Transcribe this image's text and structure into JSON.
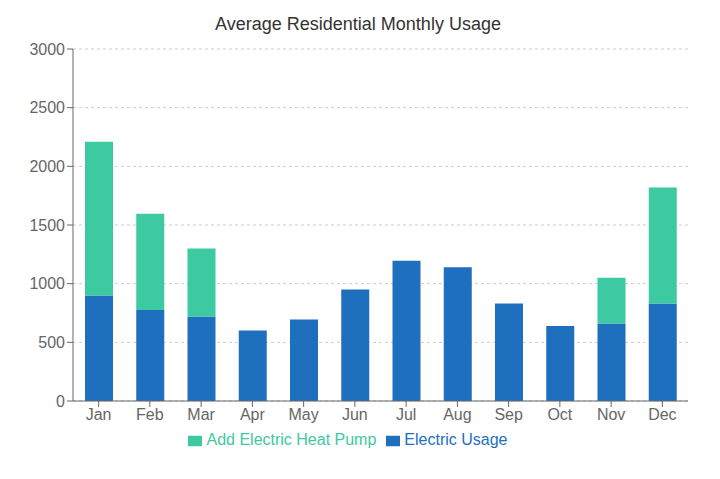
{
  "chart_data": {
    "type": "bar",
    "title": "Average Residential Monthly Usage",
    "categories": [
      "Jan",
      "Feb",
      "Mar",
      "Apr",
      "May",
      "Jun",
      "Jul",
      "Aug",
      "Sep",
      "Oct",
      "Nov",
      "Dec"
    ],
    "series": [
      {
        "name": "Electric Usage",
        "color": "#1E6FBE",
        "values": [
          900,
          775,
          720,
          600,
          695,
          950,
          1195,
          1140,
          830,
          640,
          660,
          830
        ]
      },
      {
        "name": "Add Electric Heat Pump",
        "color": "#3DC9A1",
        "values": [
          1310,
          820,
          580,
          0,
          0,
          0,
          0,
          0,
          0,
          0,
          390,
          990
        ]
      }
    ],
    "stacked": true,
    "ylim": [
      0,
      3000
    ],
    "yticks": [
      0,
      500,
      1000,
      1500,
      2000,
      2500,
      3000
    ],
    "grid": true,
    "legend": "bottom"
  }
}
